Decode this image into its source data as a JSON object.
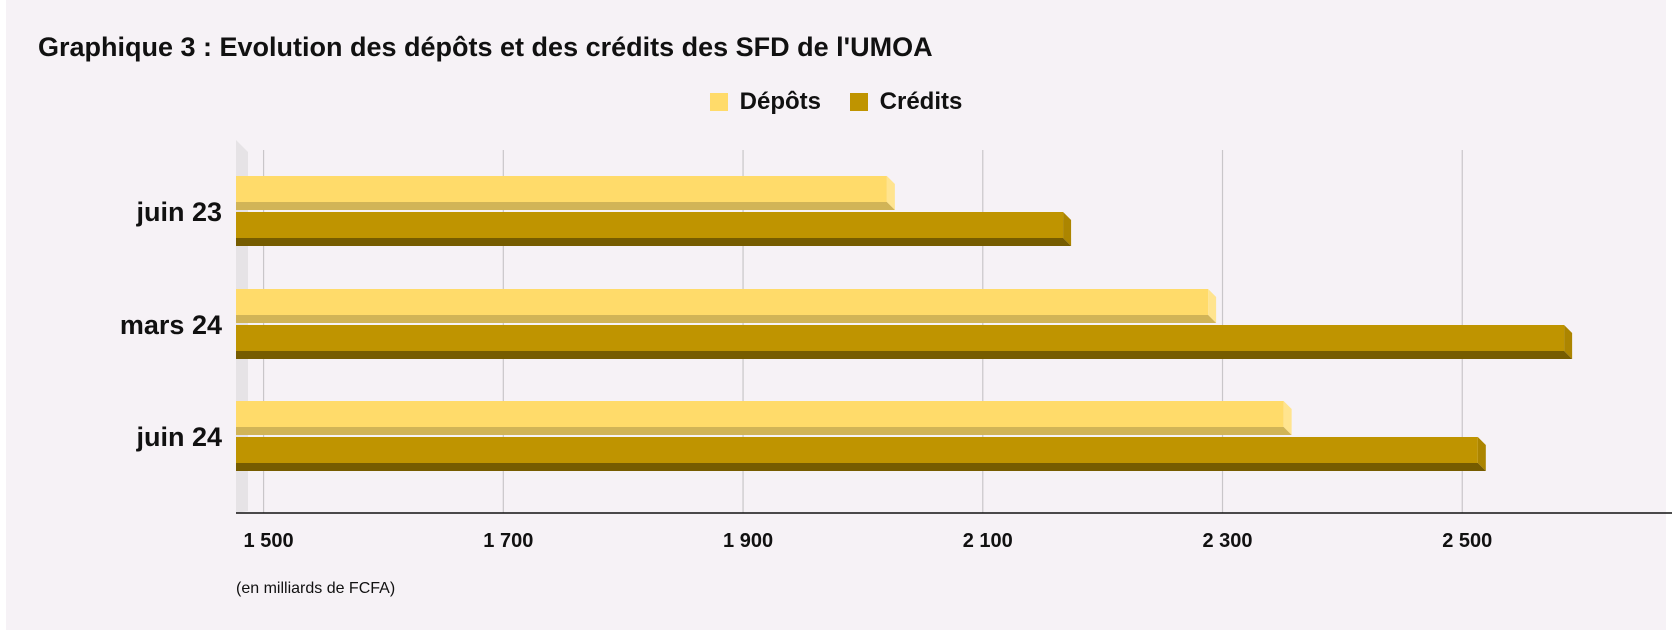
{
  "title": "Graphique 3 : Evolution des dépôts et des crédits des SFD de l'UMOA",
  "note": "(en milliards de FCFA)",
  "chart_data": {
    "type": "bar",
    "orientation": "horizontal",
    "title": "Graphique 3 : Evolution des dépôts et des crédits des SFD de l'UMOA",
    "categories": [
      "juin 23",
      "mars 24",
      "juin 24"
    ],
    "series": [
      {
        "name": "Dépôts",
        "color": "#ffdb6a",
        "values": [
          2030,
          2298,
          2361
        ]
      },
      {
        "name": "Crédits",
        "color": "#bf9400",
        "values": [
          2177,
          2595,
          2523
        ]
      }
    ],
    "x_ticks": [
      1500,
      1700,
      1900,
      2100,
      2300,
      2500
    ],
    "x_tick_labels": [
      "1 500",
      "1 700",
      "1 900",
      "2 100",
      "2 300",
      "2 500"
    ],
    "xlim": [
      1487,
      2685
    ],
    "grid": true,
    "legend_position": "top-center",
    "xlabel": "",
    "ylabel": ""
  }
}
